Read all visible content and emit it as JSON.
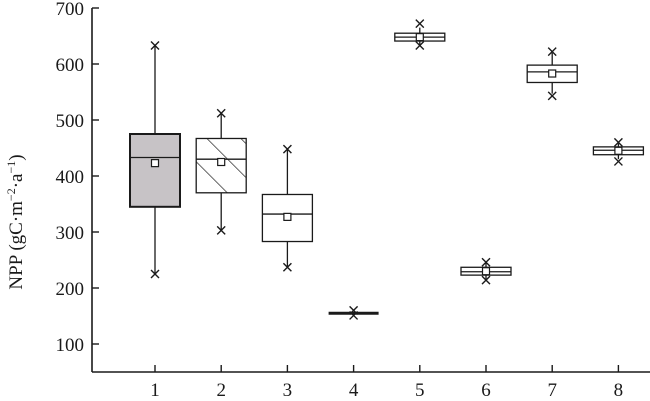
{
  "chart_data": {
    "type": "box",
    "title": "",
    "xlabel": "",
    "ylabel": {
      "prefix": "NPP (gC·m",
      "exp1": "−2",
      "mid": "·a",
      "exp2": "−1",
      "suffix": ")"
    },
    "ylim": [
      50,
      700
    ],
    "yticks": [
      100,
      200,
      300,
      400,
      500,
      600,
      700
    ],
    "categories": [
      "1",
      "2",
      "3",
      "4",
      "5",
      "6",
      "7",
      "8"
    ],
    "boxes": [
      {
        "category": "1",
        "whisker_low": 225,
        "q1": 345,
        "median": 433,
        "q3": 475,
        "whisker_high": 633,
        "mean": 423,
        "outliers": [
          225,
          633
        ],
        "fill": "gray"
      },
      {
        "category": "2",
        "whisker_low": 303,
        "q1": 370,
        "median": 430,
        "q3": 467,
        "whisker_high": 512,
        "mean": 425,
        "outliers": [
          303,
          512
        ],
        "fill": "hatch"
      },
      {
        "category": "3",
        "whisker_low": 237,
        "q1": 283,
        "median": 332,
        "q3": 367,
        "whisker_high": 448,
        "mean": 327,
        "outliers": [
          237,
          448
        ],
        "fill": "white"
      },
      {
        "category": "4",
        "whisker_low": 155,
        "q1": 155,
        "median": 155,
        "q3": 155,
        "whisker_high": 155,
        "mean": 155,
        "outliers": [
          151,
          160
        ],
        "fill": "white"
      },
      {
        "category": "5",
        "whisker_low": 633,
        "q1": 641,
        "median": 648,
        "q3": 655,
        "whisker_high": 665,
        "mean": 648,
        "outliers": [
          633,
          672
        ],
        "fill": "white"
      },
      {
        "category": "6",
        "whisker_low": 215,
        "q1": 223,
        "median": 229,
        "q3": 237,
        "whisker_high": 245,
        "mean": 230,
        "outliers": [
          214,
          246
        ],
        "fill": "white"
      },
      {
        "category": "7",
        "whisker_low": 547,
        "q1": 567,
        "median": 586,
        "q3": 598,
        "whisker_high": 620,
        "mean": 583,
        "outliers": [
          543,
          622
        ],
        "fill": "white"
      },
      {
        "category": "8",
        "whisker_low": 430,
        "q1": 438,
        "median": 446,
        "q3": 452,
        "whisker_high": 458,
        "mean": 445,
        "outliers": [
          426,
          460
        ],
        "fill": "white"
      }
    ],
    "grid": false,
    "legend": "none"
  },
  "colors": {
    "axis": "#1a1a1a",
    "gray_fill": "#c7c3c6",
    "white_fill": "#ffffff"
  }
}
